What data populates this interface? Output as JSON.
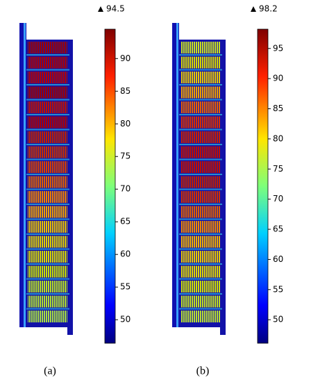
{
  "panels": [
    {
      "caption": "(a)",
      "max": 94.5,
      "colorbar": {
        "range": [
          46.4,
          94.5
        ],
        "ticks": [
          50,
          55,
          60,
          65,
          70,
          75,
          80,
          85,
          90
        ]
      }
    },
    {
      "caption": "(b)",
      "max": 98.2,
      "colorbar": {
        "range": [
          46.1,
          98.2
        ],
        "ticks": [
          50,
          55,
          60,
          65,
          70,
          75,
          80,
          85,
          90,
          95
        ]
      }
    }
  ]
}
